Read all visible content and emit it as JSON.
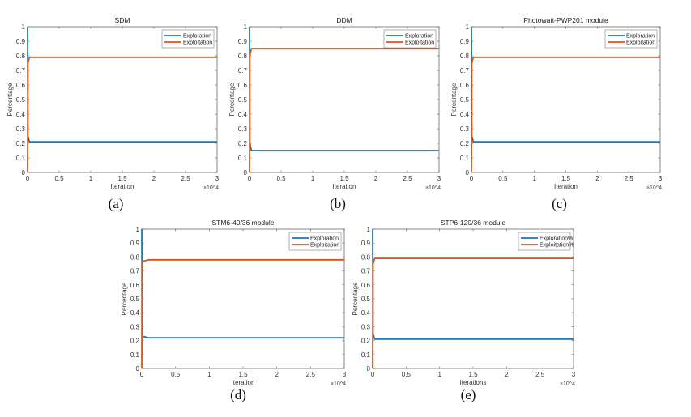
{
  "colors": {
    "exploration": "#1f77b4",
    "exploitation": "#d95319"
  },
  "chart_data": [
    {
      "type": "line",
      "caption": "(a)",
      "title": "SDM",
      "xlabel": "Iteration",
      "ylabel": "Percentage",
      "x_multiplier": "×10^4",
      "xlim": [
        0,
        3
      ],
      "ylim": [
        0,
        1
      ],
      "xticks": [
        "0",
        "0.5",
        "1",
        "1.5",
        "2",
        "2.5",
        "3"
      ],
      "yticks": [
        "0",
        "0.1",
        "0.2",
        "0.3",
        "0.4",
        "0.5",
        "0.6",
        "0.7",
        "0.8",
        "0.9",
        "1"
      ],
      "legend_position": "top-right",
      "series": [
        {
          "name": "Exploration",
          "points": [
            [
              0,
              1
            ],
            [
              0.005,
              0.25
            ],
            [
              0.03,
              0.21
            ],
            [
              3,
              0.21
            ]
          ]
        },
        {
          "name": "Exploitation",
          "points": [
            [
              0,
              0
            ],
            [
              0.005,
              0.75
            ],
            [
              0.03,
              0.79
            ],
            [
              3,
              0.79
            ]
          ]
        }
      ]
    },
    {
      "type": "line",
      "caption": "(b)",
      "title": "DDM",
      "xlabel": "Iteration",
      "ylabel": "Percentage",
      "x_multiplier": "×10^4",
      "xlim": [
        0,
        3
      ],
      "ylim": [
        0,
        1
      ],
      "xticks": [
        "0",
        "0.5",
        "1",
        "1.5",
        "2",
        "2.5",
        "3"
      ],
      "yticks": [
        "0",
        "0.1",
        "0.2",
        "0.3",
        "0.4",
        "0.5",
        "0.6",
        "0.7",
        "0.8",
        "0.9",
        "1"
      ],
      "legend_position": "top-right",
      "series": [
        {
          "name": "Exploration",
          "points": [
            [
              0,
              1
            ],
            [
              0.005,
              0.2
            ],
            [
              0.03,
              0.15
            ],
            [
              3,
              0.15
            ]
          ]
        },
        {
          "name": "Exploitation",
          "points": [
            [
              0,
              0
            ],
            [
              0.005,
              0.8
            ],
            [
              0.03,
              0.85
            ],
            [
              3,
              0.85
            ]
          ]
        }
      ]
    },
    {
      "type": "line",
      "caption": "(c)",
      "title": "Photowatt-PWP201 module",
      "xlabel": "Iteration",
      "ylabel": "Percentage",
      "x_multiplier": "×10^4",
      "xlim": [
        0,
        3
      ],
      "ylim": [
        0,
        1
      ],
      "xticks": [
        "0",
        "0.5",
        "1",
        "1.5",
        "2",
        "2.5",
        "3"
      ],
      "yticks": [
        "0",
        "0.1",
        "0.2",
        "0.3",
        "0.4",
        "0.5",
        "0.6",
        "0.7",
        "0.8",
        "0.9",
        "1"
      ],
      "legend_position": "top-right",
      "series": [
        {
          "name": "Exploration",
          "points": [
            [
              0,
              1
            ],
            [
              0.005,
              0.25
            ],
            [
              0.03,
              0.21
            ],
            [
              3,
              0.21
            ]
          ]
        },
        {
          "name": "Exploitation",
          "points": [
            [
              0,
              0
            ],
            [
              0.005,
              0.75
            ],
            [
              0.03,
              0.79
            ],
            [
              3,
              0.79
            ]
          ]
        }
      ]
    },
    {
      "type": "line",
      "caption": "(d)",
      "title": "STM6-40/36 module",
      "xlabel": "Iteration",
      "ylabel": "Percentage",
      "x_multiplier": "×10^4",
      "xlim": [
        0,
        3
      ],
      "ylim": [
        0,
        1
      ],
      "xticks": [
        "0",
        "0.5",
        "1",
        "1.5",
        "2",
        "2.5",
        "3"
      ],
      "yticks": [
        "0",
        "0.1",
        "0.2",
        "0.3",
        "0.4",
        "0.5",
        "0.6",
        "0.7",
        "0.8",
        "0.9",
        "1"
      ],
      "legend_position": "top-right",
      "series": [
        {
          "name": "Exploration",
          "points": [
            [
              0,
              1
            ],
            [
              0.005,
              0.23
            ],
            [
              0.06,
              0.225
            ],
            [
              0.1,
              0.22
            ],
            [
              3,
              0.22
            ]
          ]
        },
        {
          "name": "Exploitation",
          "points": [
            [
              0,
              0
            ],
            [
              0.005,
              0.77
            ],
            [
              0.06,
              0.775
            ],
            [
              0.1,
              0.78
            ],
            [
              3,
              0.78
            ]
          ]
        }
      ]
    },
    {
      "type": "line",
      "caption": "(e)",
      "title": "STP6-120/36 module",
      "xlabel": "Iterations",
      "ylabel": "Percentage",
      "x_multiplier": "×10^4",
      "xlim": [
        0,
        3
      ],
      "ylim": [
        0,
        1
      ],
      "xticks": [
        "0",
        "0.5",
        "1",
        "1.5",
        "2",
        "2.5",
        "3"
      ],
      "yticks": [
        "0",
        "0.1",
        "0.2",
        "0.3",
        "0.4",
        "0.5",
        "0.6",
        "0.7",
        "0.8",
        "0.9",
        "1"
      ],
      "legend_position": "top-right",
      "series": [
        {
          "name": "Exploration%",
          "points": [
            [
              0,
              1
            ],
            [
              0.005,
              0.25
            ],
            [
              0.03,
              0.21
            ],
            [
              3,
              0.21
            ]
          ]
        },
        {
          "name": "Exploitation%",
          "points": [
            [
              0,
              0
            ],
            [
              0.005,
              0.75
            ],
            [
              0.03,
              0.79
            ],
            [
              3,
              0.79
            ]
          ]
        }
      ]
    }
  ]
}
